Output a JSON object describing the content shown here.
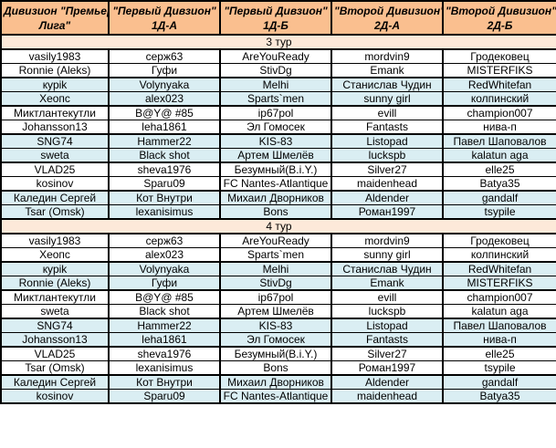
{
  "colors": {
    "header_bg": "#FABF8F",
    "banner_bg": "#FDE9D9",
    "row_bg": "#FFFFFF",
    "row_alt_bg": "#DAEEF3",
    "border": "#000000",
    "text": "#000000"
  },
  "table": {
    "columns": [
      {
        "line1": "Дивизион \"Премьер-",
        "line2": "Лига\""
      },
      {
        "line1": "\"Первый Дивзион\"",
        "line2": "1Д-А"
      },
      {
        "line1": "\"Первый Дивзион\"",
        "line2": "1Д-Б"
      },
      {
        "line1": "\"Второй Дивизион\"",
        "line2": "2Д-А"
      },
      {
        "line1": "\"Второй Дивизион\"",
        "line2": "2Д-Б"
      }
    ],
    "sections": [
      {
        "banner": "3 тур",
        "rows": [
          [
            "vasily1983",
            "серж63",
            "AreYouReady",
            "mordvin9",
            "Гродековец"
          ],
          [
            "Ronnie (Aleks)",
            "Гуфи",
            "StivDg",
            "Emank",
            "MISTERFIKS"
          ],
          [
            "кypik",
            "Volynyaka",
            "Melhi",
            "Станислав Чудин",
            "RedWhitefan"
          ],
          [
            "Хеопс",
            "alex023",
            "Sparts`men",
            "sunny girl",
            "колпинский"
          ],
          [
            "Миктлантекутли",
            "B@Y@ #85",
            "ip67pol",
            "evill",
            "champion007"
          ],
          [
            "Johansson13",
            "leha1861",
            "Эл Гомосек",
            "Fantasts",
            "нива-п"
          ],
          [
            "SNG74",
            "Hammer22",
            "KIS-83",
            "Listopad",
            "Павел Шаповалов"
          ],
          [
            "sweta",
            "Black shot",
            "Артем Шмелёв",
            "luckspb",
            "kalatun aga"
          ],
          [
            "VLAD25",
            "sheva1976",
            "Безумный(B.i.Y.)",
            "Silver27",
            "elle25"
          ],
          [
            "kosinov",
            "Sparu09",
            "FC Nantes-Atlantique",
            "maidenhead",
            "Batya35"
          ],
          [
            "Каледин Сергей",
            "Кот Внутри",
            "Михаил Дворников",
            "Aldender",
            "gandalf"
          ],
          [
            "Tsar (Omsk)",
            "lexanisimus",
            "Bons",
            "Роман1997",
            "tsypile"
          ]
        ]
      },
      {
        "banner": "4 тур",
        "rows": [
          [
            "vasily1983",
            "серж63",
            "AreYouReady",
            "mordvin9",
            "Гродековец"
          ],
          [
            "Хеопс",
            "alex023",
            "Sparts`men",
            "sunny girl",
            "колпинский"
          ],
          [
            "кypik",
            "Volynyaka",
            "Melhi",
            "Станислав Чудин",
            "RedWhitefan"
          ],
          [
            "Ronnie (Aleks)",
            "Гуфи",
            "StivDg",
            "Emank",
            "MISTERFIKS"
          ],
          [
            "Миктлантекутли",
            "B@Y@ #85",
            "ip67pol",
            "evill",
            "champion007"
          ],
          [
            "sweta",
            "Black shot",
            "Артем Шмелёв",
            "luckspb",
            "kalatun aga"
          ],
          [
            "SNG74",
            "Hammer22",
            "KIS-83",
            "Listopad",
            "Павел Шаповалов"
          ],
          [
            "Johansson13",
            "leha1861",
            "Эл Гомосек",
            "Fantasts",
            "нива-п"
          ],
          [
            "VLAD25",
            "sheva1976",
            "Безумный(B.i.Y.)",
            "Silver27",
            "elle25"
          ],
          [
            "Tsar (Omsk)",
            "lexanisimus",
            "Bons",
            "Роман1997",
            "tsypile"
          ],
          [
            "Каледин Сергей",
            "Кот Внутри",
            "Михаил Дворников",
            "Aldender",
            "gandalf"
          ],
          [
            "kosinov",
            "Sparu09",
            "FC Nantes-Atlantique",
            "maidenhead",
            "Batya35"
          ]
        ]
      }
    ]
  }
}
